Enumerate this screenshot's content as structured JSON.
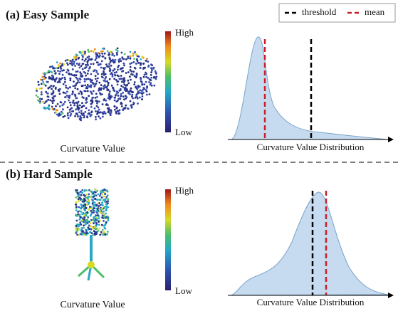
{
  "legend": {
    "threshold": "threshold",
    "mean": "mean"
  },
  "panels": [
    {
      "label": "(a) Easy Sample",
      "colorbar": {
        "high": "High",
        "low": "Low"
      },
      "left_caption": "Curvature Value",
      "right_caption": "Curvature Value Distribution"
    },
    {
      "label": "(b) Hard Sample",
      "colorbar": {
        "high": "High",
        "low": "Low"
      },
      "left_caption": "Curvature Value",
      "right_caption": "Curvature Value Distribution"
    }
  ]
}
